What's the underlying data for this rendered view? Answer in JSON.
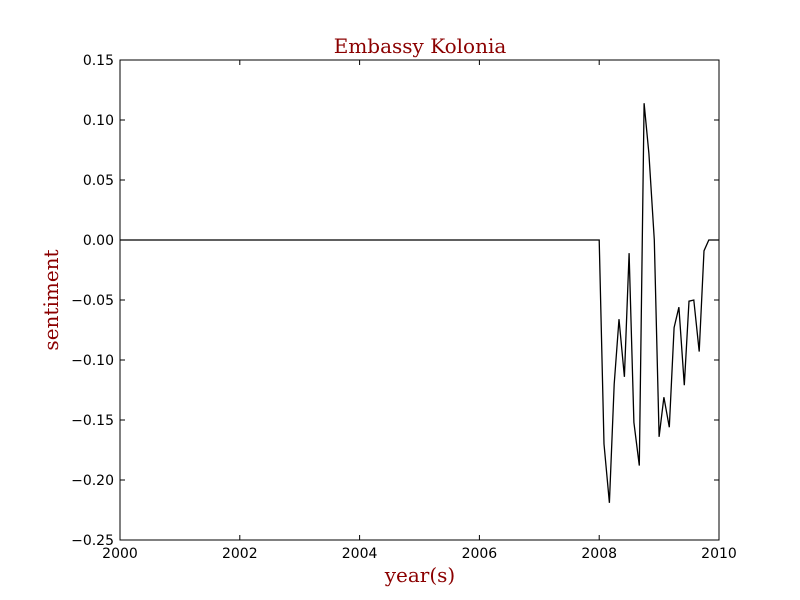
{
  "chart_data": {
    "type": "line",
    "title": "Embassy Kolonia",
    "xlabel": "year(s)",
    "ylabel": "sentiment",
    "xlim": [
      2000,
      2010
    ],
    "ylim": [
      -0.25,
      0.15
    ],
    "xticks": [
      2000,
      2002,
      2004,
      2006,
      2008,
      2010
    ],
    "xtick_labels": [
      "2000",
      "2002",
      "2004",
      "2006",
      "2008",
      "2010"
    ],
    "yticks": [
      -0.25,
      -0.2,
      -0.15,
      -0.1,
      -0.05,
      0.0,
      0.05,
      0.1,
      0.15
    ],
    "ytick_labels": [
      "−0.25",
      "−0.20",
      "−0.15",
      "−0.10",
      "−0.05",
      "0.00",
      "0.05",
      "0.10",
      "0.15"
    ],
    "grid": false,
    "colors": {
      "line": "#000000",
      "text_accent": "#8b0000"
    },
    "series": [
      {
        "x": [
          2000.0,
          2008.0,
          2008.08,
          2008.17,
          2008.25,
          2008.33,
          2008.42,
          2008.5,
          2008.58,
          2008.67,
          2008.75,
          2008.83,
          2008.92,
          2009.0,
          2009.08,
          2009.17,
          2009.25,
          2009.33,
          2009.42,
          2009.5,
          2009.58,
          2009.67,
          2009.75,
          2009.83,
          2009.92,
          2010.0
        ],
        "y": [
          0.0,
          0.0,
          -0.17,
          -0.219,
          -0.12,
          -0.066,
          -0.114,
          -0.011,
          -0.152,
          -0.188,
          0.114,
          0.072,
          0.0,
          -0.164,
          -0.131,
          -0.156,
          -0.073,
          -0.056,
          -0.121,
          -0.051,
          -0.05,
          -0.093,
          -0.009,
          0.0,
          0.0,
          0.0
        ]
      }
    ]
  }
}
